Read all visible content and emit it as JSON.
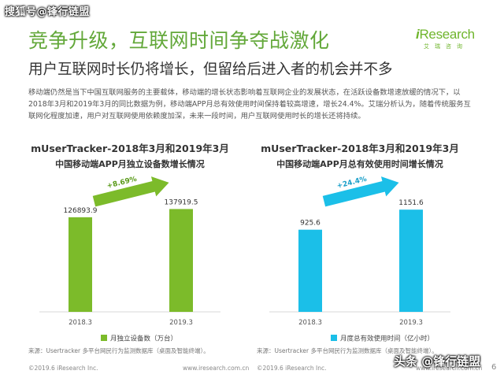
{
  "watermark_top": "搜狐号@锋行链盟",
  "logo": {
    "text_i": "i",
    "text_main": "Research",
    "sub": "艾瑞咨询"
  },
  "title": "竞争升级，互联网时间争夺战激化",
  "subtitle": "用户互联网时长仍将增长，但留给后进入者的机会并不多",
  "body": "移动端仍然是当下中国互联网服务的主要载体，移动端的增长状态影响着互联网企业的发展状态，在活跃设备数增速放缓的情况下，以2018年3月和2019年3月的同比数据为例，移动端APP月总有效使用时间保持着较高增速，增长24.4%。艾瑞分析认为，随着传统服务互联网化程度加速，用户对互联网使用依赖度加深，未来一段时间，用户互联网使用时长的增长还将持续。",
  "chart_data": [
    {
      "type": "bar",
      "title": "mUserTracker-2018年3月和2019年3月",
      "subtitle": "中国移动端APP月独立设备数增长情况",
      "categories": [
        "2018.3",
        "2019.3"
      ],
      "values": [
        126893.9,
        137919.5
      ],
      "value_labels": [
        "126893.9",
        "137919.5"
      ],
      "legend": "月独立设备数（万台）",
      "growth_label": "+8.69%",
      "color": "#7cbb2a",
      "arrow_color": "#7cbb2a",
      "ylim": [
        0,
        150000
      ],
      "grid": false,
      "source": "来源：Usertracker 多平台网民行为监测数据库（桌面及智能终端）。"
    },
    {
      "type": "bar",
      "title": "mUserTracker-2018年3月和2019年3月",
      "subtitle": "中国移动端APP月总有效使用时间增长情况",
      "categories": [
        "2018.3",
        "2019.3"
      ],
      "values": [
        925.6,
        1151.6
      ],
      "value_labels": [
        "925.6",
        "1151.6"
      ],
      "legend": "月度总有效使用时间（亿小时）",
      "growth_label": "+24.4%",
      "color": "#1bbfe8",
      "arrow_color": "#1bbfe8",
      "ylim": [
        0,
        1260
      ],
      "grid": false,
      "source": "来源：Usertracker 多平台网民行为监测数据库（桌面及智能终端）。"
    }
  ],
  "footer": {
    "left1": "©2019.6 iResearch Inc.",
    "right1": "www.iresearch.com.cn",
    "left2": "©2019.6 iResearch Inc.",
    "right2": "www.iresearch.com.cn"
  },
  "page_number": "6",
  "watermark_bottom": "头条 @锋行链盟"
}
